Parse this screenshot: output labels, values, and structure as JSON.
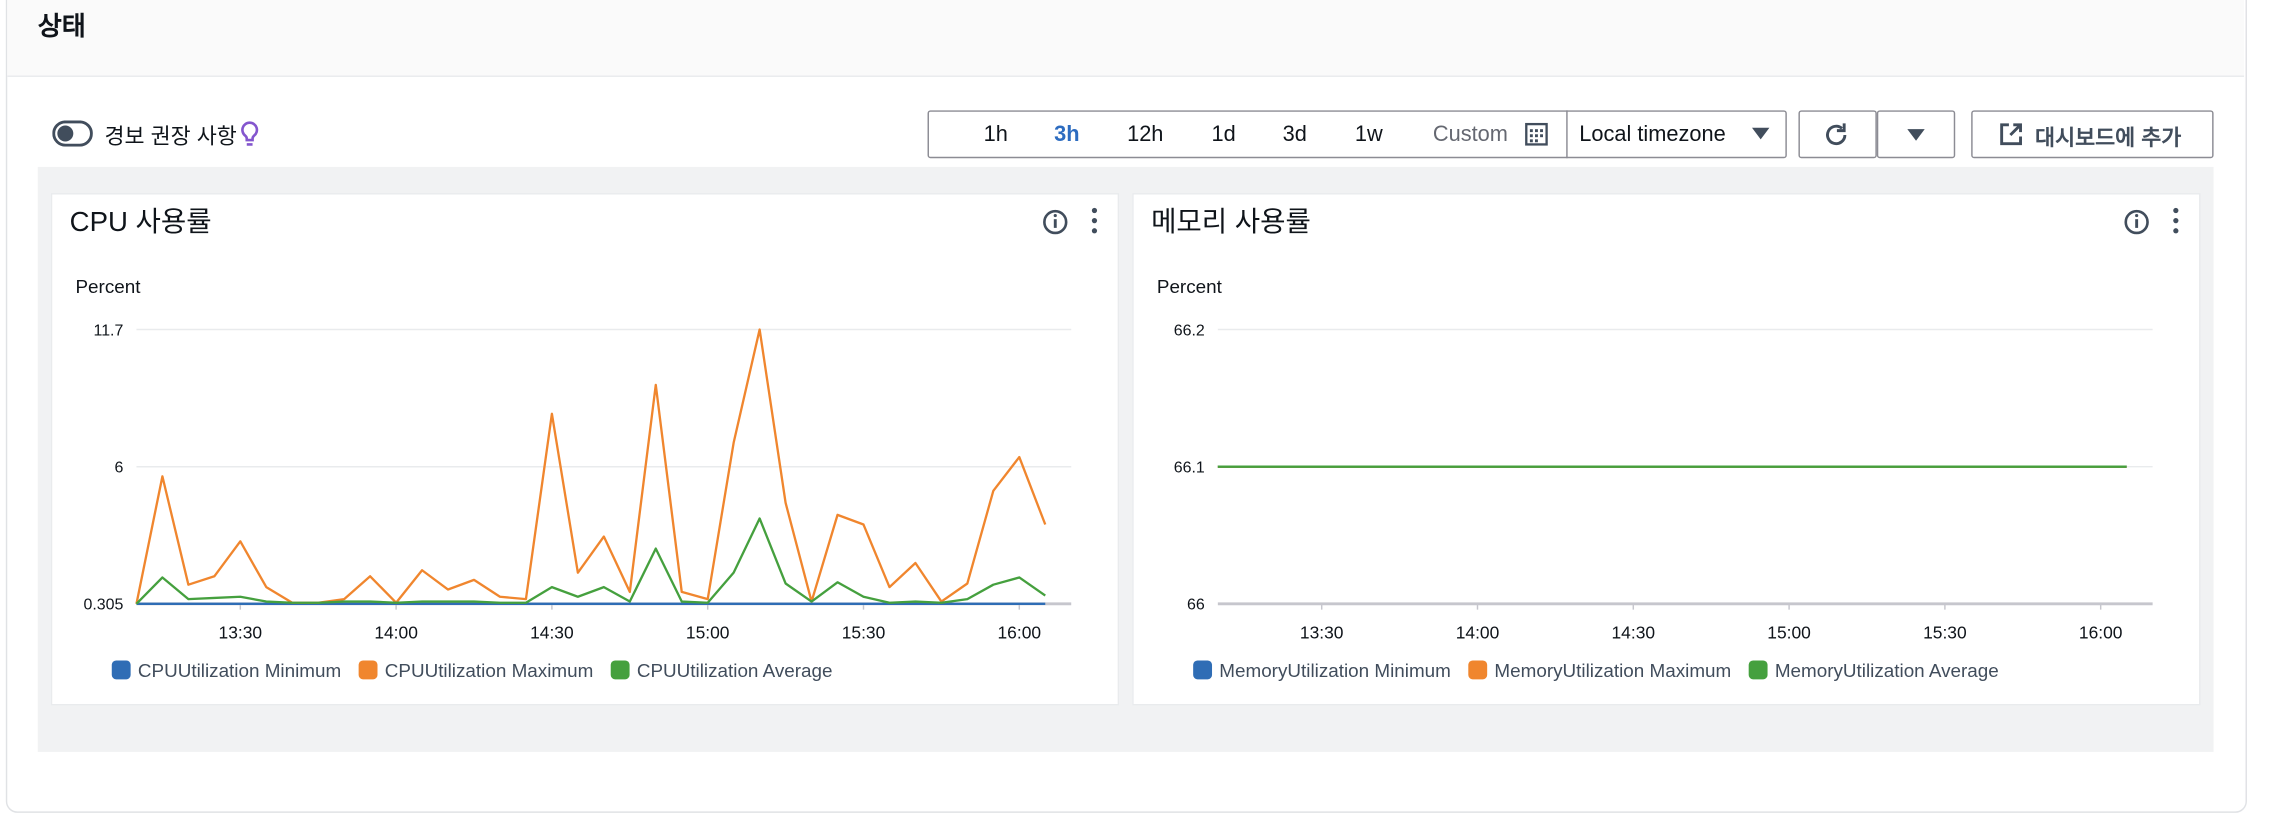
{
  "header": {
    "title": "상태"
  },
  "toolbar": {
    "alarm_toggle": "경보 권장 사항",
    "time_ranges": [
      "1h",
      "3h",
      "12h",
      "1d",
      "3d",
      "1w",
      "Custom"
    ],
    "selected_index": 1,
    "timezone": "Local timezone",
    "add_button": "대시보드에 추가"
  },
  "chart_data": [
    {
      "type": "line",
      "title": "CPU 사용률",
      "y_label": "Percent",
      "x": [
        "13:10",
        "13:15",
        "13:20",
        "13:25",
        "13:30",
        "13:35",
        "13:40",
        "13:45",
        "13:50",
        "13:55",
        "14:00",
        "14:05",
        "14:10",
        "14:15",
        "14:20",
        "14:25",
        "14:30",
        "14:35",
        "14:40",
        "14:45",
        "14:50",
        "14:55",
        "15:00",
        "15:05",
        "15:10",
        "15:15",
        "15:20",
        "15:25",
        "15:30",
        "15:35",
        "15:40",
        "15:45",
        "15:50",
        "15:55",
        "16:00",
        "16:05"
      ],
      "xlim": [
        "13:10",
        "16:10"
      ],
      "xticks": [
        "13:30",
        "14:00",
        "14:30",
        "15:00",
        "15:30",
        "16:00"
      ],
      "ylim": [
        0.305,
        11.7
      ],
      "yticks": [
        0.305,
        6,
        11.7
      ],
      "grid": true,
      "legend": "bottom-left",
      "series": [
        {
          "name": "CPUUtilization Minimum",
          "color": "#2f6db5",
          "values": [
            0.305,
            0.305,
            0.305,
            0.305,
            0.305,
            0.305,
            0.305,
            0.305,
            0.305,
            0.305,
            0.305,
            0.305,
            0.305,
            0.305,
            0.305,
            0.305,
            0.305,
            0.305,
            0.305,
            0.305,
            0.305,
            0.305,
            0.305,
            0.305,
            0.305,
            0.305,
            0.305,
            0.305,
            0.305,
            0.305,
            0.305,
            0.305,
            0.305,
            0.305,
            0.305,
            0.305
          ]
        },
        {
          "name": "CPUUtilization Maximum",
          "color": "#f0862e",
          "values": [
            0.305,
            5.6,
            1.1,
            1.45,
            2.9,
            1.0,
            0.35,
            0.35,
            0.5,
            1.45,
            0.35,
            1.7,
            0.9,
            1.3,
            0.6,
            0.5,
            8.2,
            1.6,
            3.1,
            0.8,
            9.4,
            0.8,
            0.5,
            7.0,
            11.7,
            4.5,
            0.4,
            4.0,
            3.6,
            1.0,
            2.0,
            0.4,
            1.15,
            5.0,
            6.4,
            3.6
          ]
        },
        {
          "name": "CPUUtilization Average",
          "color": "#45a03e",
          "values": [
            0.305,
            1.4,
            0.5,
            0.55,
            0.6,
            0.4,
            0.35,
            0.35,
            0.4,
            0.4,
            0.35,
            0.4,
            0.4,
            0.4,
            0.35,
            0.35,
            1.0,
            0.6,
            1.0,
            0.4,
            2.6,
            0.4,
            0.35,
            1.6,
            3.85,
            1.15,
            0.4,
            1.2,
            0.6,
            0.35,
            0.4,
            0.35,
            0.5,
            1.1,
            1.4,
            0.65
          ]
        }
      ]
    },
    {
      "type": "line",
      "title": "메모리 사용률",
      "y_label": "Percent",
      "x": [
        "13:10",
        "13:15",
        "13:20",
        "13:25",
        "13:30",
        "13:35",
        "13:40",
        "13:45",
        "13:50",
        "13:55",
        "14:00",
        "14:05",
        "14:10",
        "14:15",
        "14:20",
        "14:25",
        "14:30",
        "14:35",
        "14:40",
        "14:45",
        "14:50",
        "14:55",
        "15:00",
        "15:05",
        "15:10",
        "15:15",
        "15:20",
        "15:25",
        "15:30",
        "15:35",
        "15:40",
        "15:45",
        "15:50",
        "15:55",
        "16:00",
        "16:05"
      ],
      "xlim": [
        "13:10",
        "16:10"
      ],
      "xticks": [
        "13:30",
        "14:00",
        "14:30",
        "15:00",
        "15:30",
        "16:00"
      ],
      "ylim": [
        66,
        66.2
      ],
      "yticks": [
        66,
        66.1,
        66.2
      ],
      "grid": true,
      "legend": "bottom-left",
      "series": [
        {
          "name": "MemoryUtilization Minimum",
          "color": "#2f6db5",
          "values": [
            66.1,
            66.1,
            66.1,
            66.1,
            66.1,
            66.1,
            66.1,
            66.1,
            66.1,
            66.1,
            66.1,
            66.1,
            66.1,
            66.1,
            66.1,
            66.1,
            66.1,
            66.1,
            66.1,
            66.1,
            66.1,
            66.1,
            66.1,
            66.1,
            66.1,
            66.1,
            66.1,
            66.1,
            66.1,
            66.1,
            66.1,
            66.1,
            66.1,
            66.1,
            66.1,
            66.1
          ]
        },
        {
          "name": "MemoryUtilization Maximum",
          "color": "#f0862e",
          "values": [
            66.1,
            66.1,
            66.1,
            66.1,
            66.1,
            66.1,
            66.1,
            66.1,
            66.1,
            66.1,
            66.1,
            66.1,
            66.1,
            66.1,
            66.1,
            66.1,
            66.1,
            66.1,
            66.1,
            66.1,
            66.1,
            66.1,
            66.1,
            66.1,
            66.1,
            66.1,
            66.1,
            66.1,
            66.1,
            66.1,
            66.1,
            66.1,
            66.1,
            66.1,
            66.1,
            66.1
          ]
        },
        {
          "name": "MemoryUtilization Average",
          "color": "#45a03e",
          "values": [
            66.1,
            66.1,
            66.1,
            66.1,
            66.1,
            66.1,
            66.1,
            66.1,
            66.1,
            66.1,
            66.1,
            66.1,
            66.1,
            66.1,
            66.1,
            66.1,
            66.1,
            66.1,
            66.1,
            66.1,
            66.1,
            66.1,
            66.1,
            66.1,
            66.1,
            66.1,
            66.1,
            66.1,
            66.1,
            66.1,
            66.1,
            66.1,
            66.1,
            66.1,
            66.1,
            66.1
          ]
        }
      ]
    }
  ]
}
